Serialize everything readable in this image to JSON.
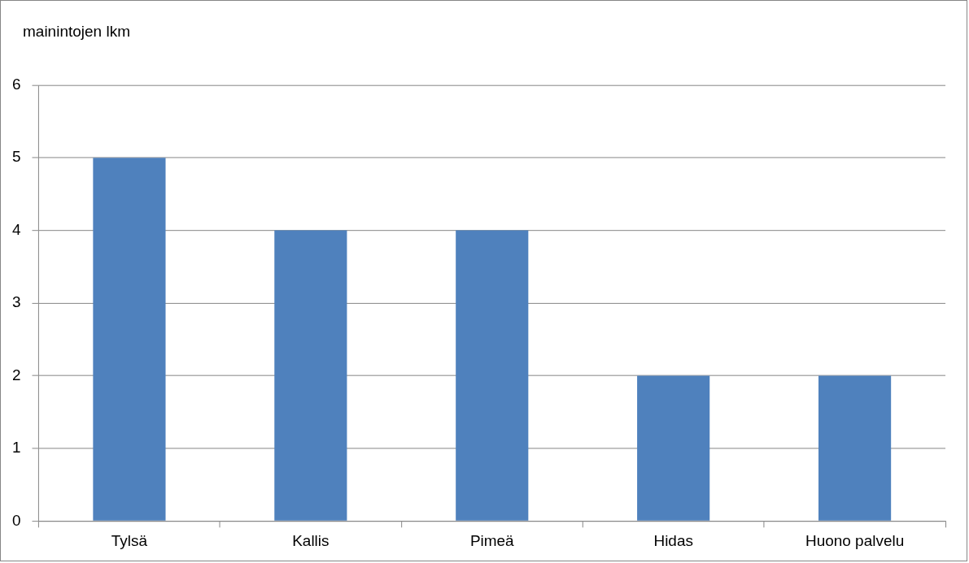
{
  "chart_data": {
    "type": "bar",
    "ylabel": "mainintojen lkm",
    "categories": [
      "Tylsä",
      "Kallis",
      "Pimeä",
      "Hidas",
      "Huono palvelu"
    ],
    "values": [
      5,
      4,
      4,
      2,
      2
    ],
    "color": "#4f81bd",
    "ylim": [
      0,
      6
    ],
    "yticks": [
      0,
      1,
      2,
      3,
      4,
      5,
      6
    ],
    "grid": "y",
    "legend": false
  }
}
